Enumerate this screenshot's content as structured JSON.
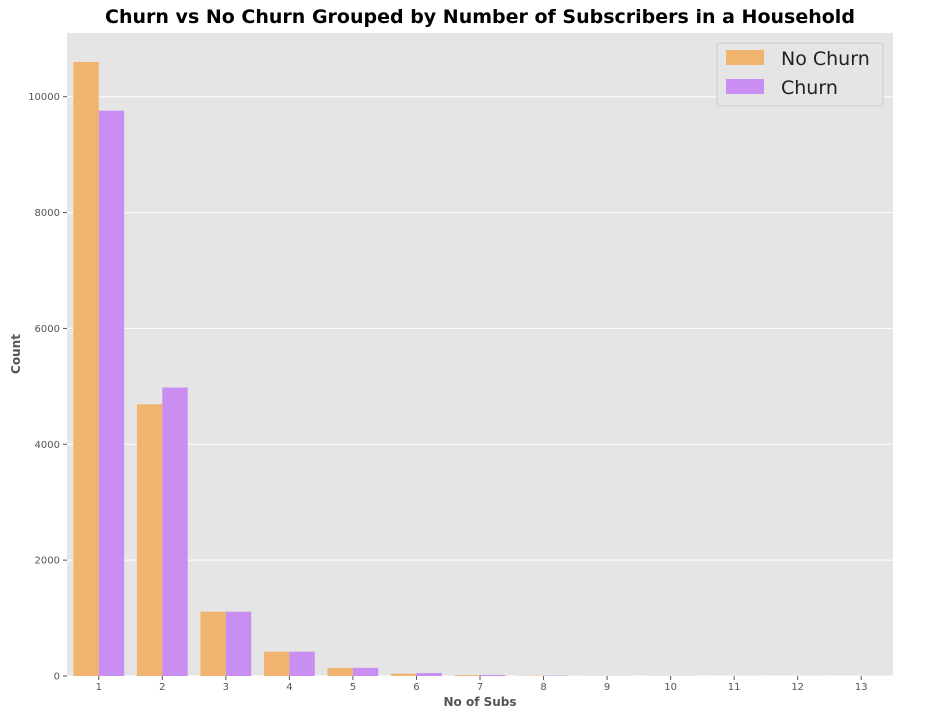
{
  "chart_data": {
    "type": "bar",
    "title": "Churn vs No Churn Grouped by Number of Subscribers in a Household",
    "xlabel": "No of Subs",
    "ylabel": "Count",
    "categories": [
      "1",
      "2",
      "3",
      "4",
      "5",
      "6",
      "7",
      "8",
      "9",
      "10",
      "11",
      "12",
      "13"
    ],
    "series": [
      {
        "name": "No Churn",
        "color": "#f0b46e",
        "values": [
          10600,
          4690,
          1110,
          420,
          140,
          40,
          15,
          5,
          3,
          2,
          1,
          1,
          1
        ]
      },
      {
        "name": "Churn",
        "color": "#c98ef2",
        "values": [
          9760,
          4980,
          1110,
          420,
          140,
          50,
          18,
          6,
          3,
          2,
          1,
          1,
          1
        ]
      }
    ],
    "ylim": [
      0,
      11100
    ],
    "yticks": [
      0,
      2000,
      4000,
      6000,
      8000,
      10000
    ],
    "grid": true,
    "legend": "top-right",
    "background": "#e5e5e5",
    "grid_color": "#ffffff"
  }
}
